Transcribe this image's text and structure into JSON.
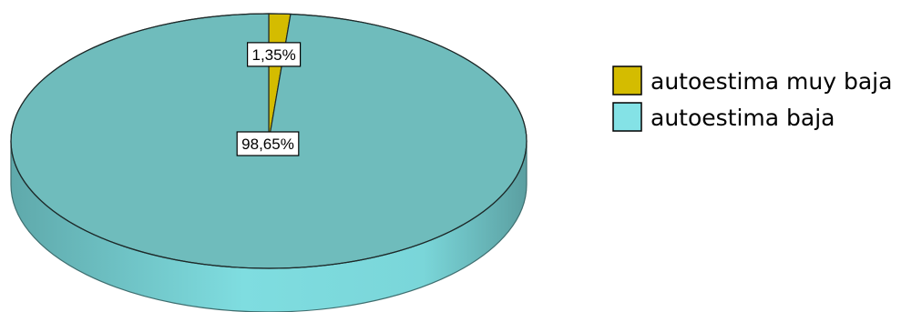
{
  "chart_data": {
    "type": "pie",
    "style": "3d",
    "title": "",
    "slices": [
      {
        "label": "autoestima muy baja",
        "value": 1.35,
        "display": "1,35%",
        "color": "#d4bc00"
      },
      {
        "label": "autoestima baja",
        "value": 98.65,
        "display": "98,65%",
        "color": "#6fbcbc"
      }
    ],
    "legend": {
      "position": "right",
      "items": [
        {
          "label": "autoestima muy baja",
          "color": "#d4bc00"
        },
        {
          "label": "autoestima baja",
          "color": "#84e2e6"
        }
      ]
    }
  }
}
